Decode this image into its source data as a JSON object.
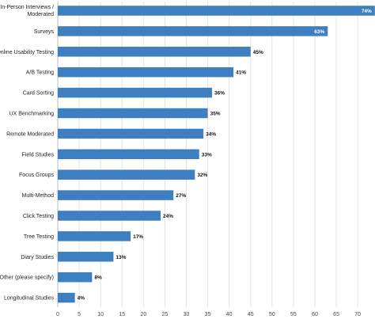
{
  "chart_data": {
    "type": "bar",
    "orientation": "horizontal",
    "categories": [
      "In-Person Interviews / Moderated",
      "Surveys",
      "Online Usability Testing",
      "A/B Testing",
      "Card Sorting",
      "UX Benchmarking",
      "Remote Moderated",
      "Field Studies",
      "Focus Groups",
      "Multi-Method",
      "Click Testing",
      "Tree Testing",
      "Diary Studies",
      "Other (please specify)",
      "Longitudinal Studies"
    ],
    "values": [
      74,
      63,
      45,
      41,
      36,
      35,
      34,
      33,
      32,
      27,
      24,
      17,
      13,
      8,
      4
    ],
    "data_labels": [
      "74%",
      "63%",
      "45%",
      "41%",
      "36%",
      "35%",
      "34%",
      "33%",
      "32%",
      "27%",
      "24%",
      "17%",
      "13%",
      "8%",
      "4%"
    ],
    "xticks": [
      0,
      5,
      10,
      15,
      20,
      25,
      30,
      35,
      40,
      45,
      50,
      55,
      60,
      65,
      70
    ],
    "xlim": [
      0,
      72
    ],
    "grid": true,
    "bar_color": "#3d7fc1",
    "title": "",
    "xlabel": "",
    "ylabel": ""
  }
}
